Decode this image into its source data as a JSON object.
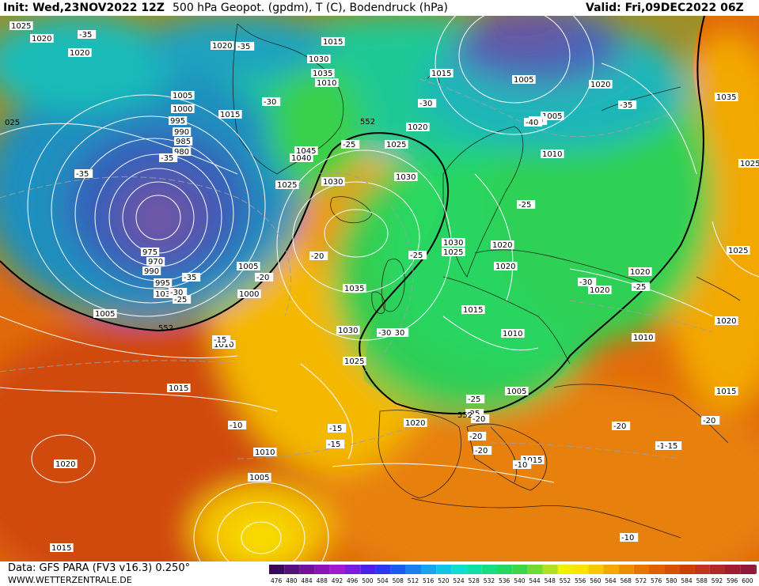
{
  "header": {
    "init": "Init: Wed,23NOV2022 12Z",
    "title": "500 hPa Geopot. (gpdm), T (C), Bodendruck (hPa)",
    "valid": "Valid: Fri,09DEC2022 06Z"
  },
  "footer": {
    "source": "Data: GFS PARA (FV3 v16.3) 0.250°",
    "website": "WWW.WETTERZENTRALE.DE"
  },
  "colorbar": {
    "values": [
      "476",
      "480",
      "484",
      "488",
      "492",
      "496",
      "500",
      "504",
      "508",
      "512",
      "516",
      "520",
      "524",
      "528",
      "532",
      "536",
      "540",
      "544",
      "548",
      "552",
      "556",
      "560",
      "564",
      "568",
      "572",
      "576",
      "580",
      "584",
      "588",
      "592",
      "596",
      "600"
    ],
    "colors": [
      "#3a0a5a",
      "#55107a",
      "#70129a",
      "#8a14b8",
      "#9f1ad0",
      "#7a1ce0",
      "#4d20ea",
      "#2a38f0",
      "#1a5cf0",
      "#1a80f0",
      "#18a4ec",
      "#12c4e4",
      "#10dcd0",
      "#10e0a8",
      "#18dc80",
      "#22d860",
      "#3ed448",
      "#72d834",
      "#b0e024",
      "#f0f000",
      "#fae400",
      "#f8c800",
      "#f4a800",
      "#ee8c00",
      "#e87400",
      "#e06000",
      "#d65000",
      "#cc4000",
      "#c03420",
      "#b02828",
      "#a01c30",
      "#901838"
    ]
  },
  "map": {
    "contour_552_label": "552",
    "pressure_labels": [
      "1025",
      "1020",
      "1020",
      "1020",
      "1015",
      "1015",
      "1015",
      "1030",
      "1035",
      "1010",
      "1005",
      "1000",
      "995",
      "990",
      "985",
      "980",
      "975",
      "970",
      "990",
      "995",
      "1035",
      "1030",
      "1025",
      "1045",
      "1040",
      "1005",
      "1005",
      "1000",
      "1010",
      "1020",
      "1025",
      "1030",
      "1035",
      "1030",
      "1025",
      "1020",
      "1020",
      "1015",
      "1010",
      "1005",
      "1020",
      "1030",
      "1025",
      "1035",
      "1020",
      "1010",
      "1005",
      "1015",
      "1020",
      "1025",
      "1020",
      "1015",
      "1020",
      "1010",
      "1005",
      "1015",
      "1015",
      "1020",
      "1025",
      "1005",
      "1010"
    ],
    "temperature_labels": [
      "-35",
      "-35",
      "-35",
      "-30",
      "-30",
      "-35",
      "-35",
      "-30",
      "-25",
      "-25",
      "-30",
      "-25",
      "-20",
      "-20",
      "-25",
      "-30",
      "-40",
      "-35",
      "-30",
      "-25",
      "-25",
      "-20",
      "-20",
      "-15",
      "-15",
      "-10",
      "-10",
      "-10",
      "-15",
      "-20",
      "-20",
      "-20",
      "-15",
      "-10",
      "-25",
      "-30"
    ],
    "zero_label": "025"
  }
}
